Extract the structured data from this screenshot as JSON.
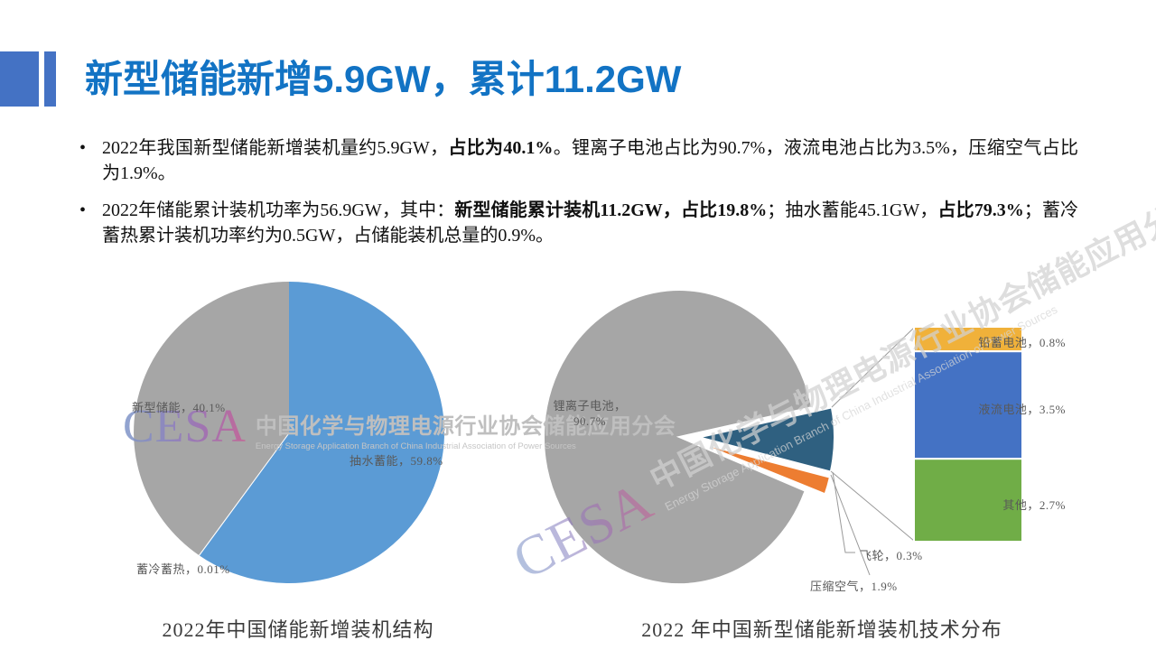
{
  "header": {
    "title": "新型储能新增5.9GW，累计11.2GW"
  },
  "bullets": [
    {
      "segments": [
        {
          "text": "2022年我国新型储能新增装机量约5.9GW，",
          "bold": false
        },
        {
          "text": "占比为40.1%",
          "bold": true
        },
        {
          "text": "。锂离子电池占比为90.7%，液流电池占比为3.5%，压缩空气占比为1.9%。",
          "bold": false
        }
      ]
    },
    {
      "segments": [
        {
          "text": "2022年储能累计装机功率为56.9GW，其中：",
          "bold": false
        },
        {
          "text": "新型储能累计装机11.2GW，占比19.8%",
          "bold": true
        },
        {
          "text": "；抽水蓄能45.1GW，",
          "bold": false
        },
        {
          "text": "占比79.3%",
          "bold": true
        },
        {
          "text": "；蓄冷蓄热累计装机功率约为0.5GW，占储能装机总量的0.9%。",
          "bold": false
        }
      ]
    }
  ],
  "watermark": {
    "logo": "CESA",
    "org_cn": "中国化学与物理电源行业协会储能应用分会",
    "org_en": "Energy Storage Application Branch of China Industrial Association of Power Sources"
  },
  "chart_data": [
    {
      "type": "pie",
      "title": "2022年中国储能新增装机结构",
      "start_angle_deg": 0,
      "slices": [
        {
          "name": "抽水蓄能",
          "value": 59.8,
          "color": "#5B9BD5",
          "label": "抽水蓄能，59.8%"
        },
        {
          "name": "蓄冷蓄热",
          "value": 0.01,
          "color": "#FFFFFF",
          "label": "蓄冷蓄热，0.01%"
        },
        {
          "name": "新型储能",
          "value": 40.1,
          "color": "#A6A6A6",
          "label": "新型储能，40.1%"
        }
      ]
    },
    {
      "type": "bar-of-pie",
      "title": "2022 年中国新型储能新增装机技术分布",
      "start_angle_deg": 111.5,
      "pie_slices": [
        {
          "name": "锂离子电池",
          "value": 90.7,
          "color": "#A6A6A6",
          "label": "锂离子电池，\n90.7%"
        },
        {
          "name": "其他技术合计",
          "value": 7.0,
          "color": "#2F6080",
          "explode": true
        },
        {
          "name": "压缩空气",
          "value": 1.9,
          "color": "#ED7D31",
          "explode": true,
          "label": "压缩空气，1.9%"
        },
        {
          "name": "飞轮",
          "value": 0.3,
          "color": "#FFFFFF",
          "explode": true,
          "label": "飞轮，0.3%"
        }
      ],
      "bar_segments": [
        {
          "name": "铅蓄电池",
          "value": 0.8,
          "color": "#F0B13A",
          "label": "铅蓄电池，0.8%"
        },
        {
          "name": "液流电池",
          "value": 3.5,
          "color": "#4472C4",
          "label": "液流电池，3.5%"
        },
        {
          "name": "其他",
          "value": 2.7,
          "color": "#70AD47",
          "label": "其他，2.7%"
        }
      ]
    }
  ]
}
